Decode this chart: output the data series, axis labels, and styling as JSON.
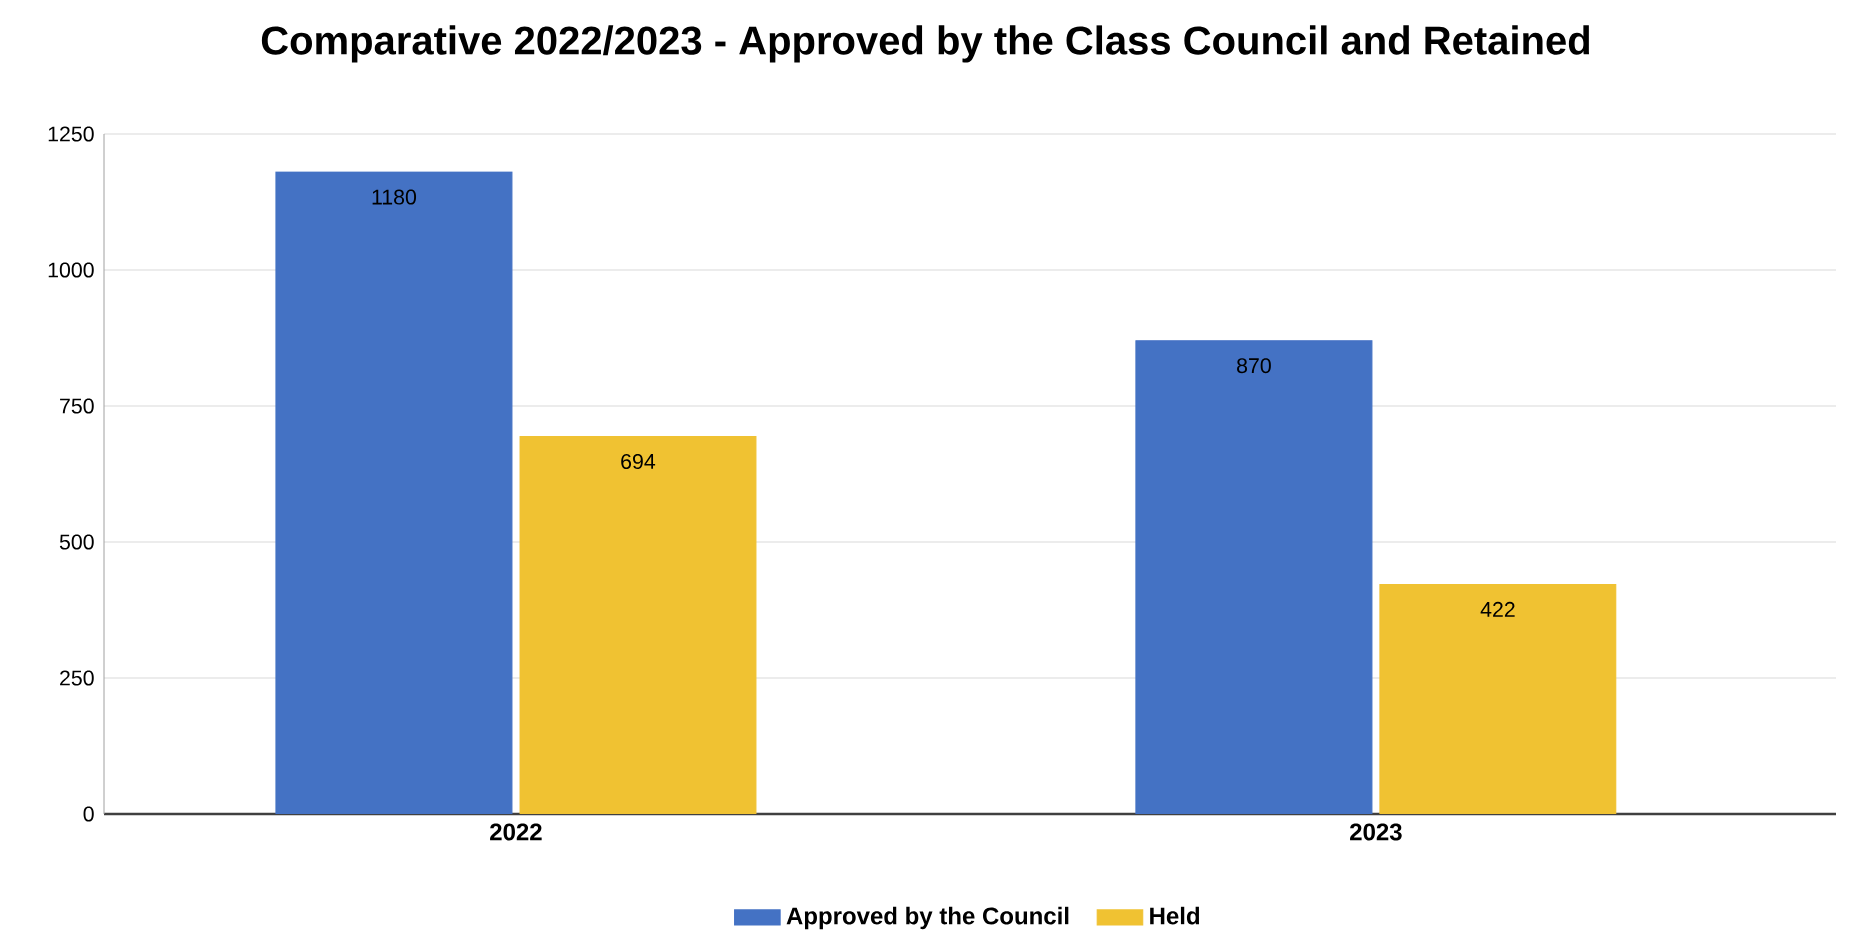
{
  "chart_data": {
    "type": "bar",
    "title": "Comparative 2022/2023 - Approved by the Class Council and Retained",
    "categories": [
      "2022",
      "2023"
    ],
    "series": [
      {
        "name": "Approved by the Council",
        "color": "#4472c4",
        "values": [
          1180,
          870
        ]
      },
      {
        "name": "Held",
        "color": "#f0c232",
        "values": [
          694,
          422
        ]
      }
    ],
    "ylim": [
      0,
      1250
    ],
    "yticks": [
      0,
      250,
      500,
      750,
      1000,
      1250
    ],
    "grid": "y",
    "legend": "bottom",
    "data_labels": true
  }
}
